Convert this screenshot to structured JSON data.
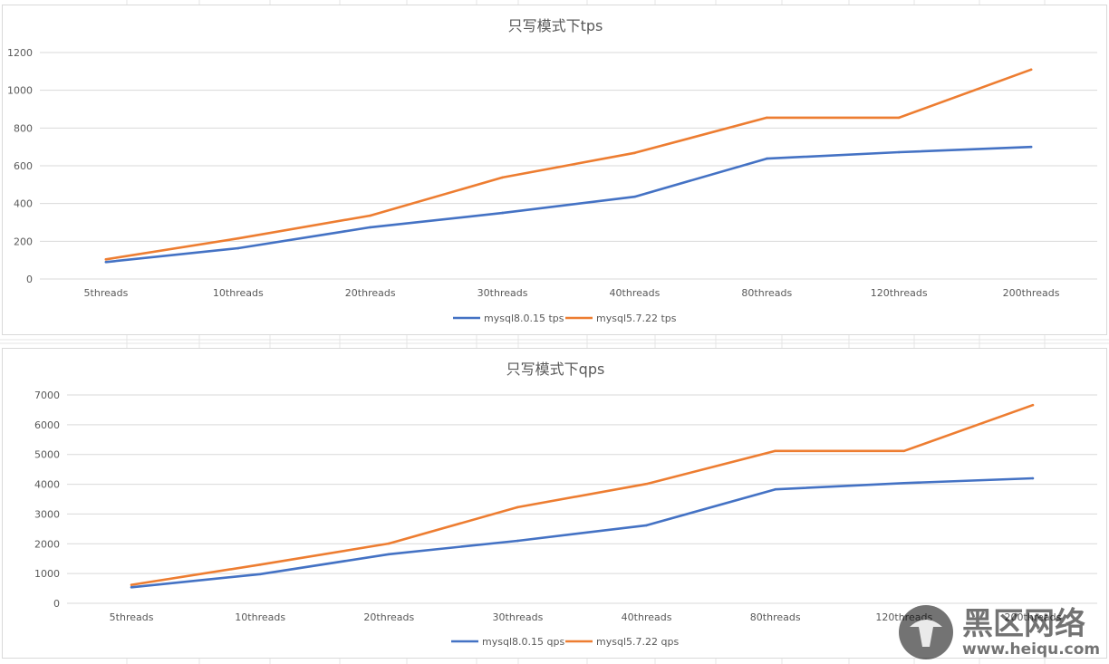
{
  "chart_data": [
    {
      "type": "line",
      "title": "只写模式下tps",
      "categories": [
        "5threads",
        "10threads",
        "20threads",
        "30threads",
        "40threads",
        "80threads",
        "120threads",
        "200threads"
      ],
      "series": [
        {
          "name": "mysql8.0.15 tps",
          "color": "#4472c4",
          "values": [
            90,
            163,
            274,
            350,
            436,
            638,
            672,
            700
          ]
        },
        {
          "name": "mysql5.7.22 tps",
          "color": "#ed7d31",
          "values": [
            104,
            215,
            336,
            538,
            668,
            855,
            855,
            1110
          ]
        }
      ],
      "ylim": [
        0,
        1200
      ],
      "yticks": [
        0,
        200,
        400,
        600,
        800,
        1000,
        1200
      ],
      "grid": true,
      "legend": "bottom"
    },
    {
      "type": "line",
      "title": "只写模式下qps",
      "categories": [
        "5threads",
        "10threads",
        "20threads",
        "30threads",
        "40threads",
        "80threads",
        "120threads",
        "200threads"
      ],
      "series": [
        {
          "name": "mysql8.0.15 qps",
          "color": "#4472c4",
          "values": [
            540,
            980,
            1650,
            2100,
            2620,
            3830,
            4040,
            4200
          ]
        },
        {
          "name": "mysql5.7.22 qps",
          "color": "#ed7d31",
          "values": [
            620,
            1300,
            2010,
            3230,
            4010,
            5120,
            5120,
            6660
          ]
        }
      ],
      "ylim": [
        0,
        7000
      ],
      "yticks": [
        0,
        1000,
        2000,
        3000,
        4000,
        5000,
        6000,
        7000
      ],
      "grid": true,
      "legend": "bottom"
    }
  ],
  "watermark": {
    "text_cn": "黑区网络",
    "text_url": "www.heiqu.com"
  }
}
